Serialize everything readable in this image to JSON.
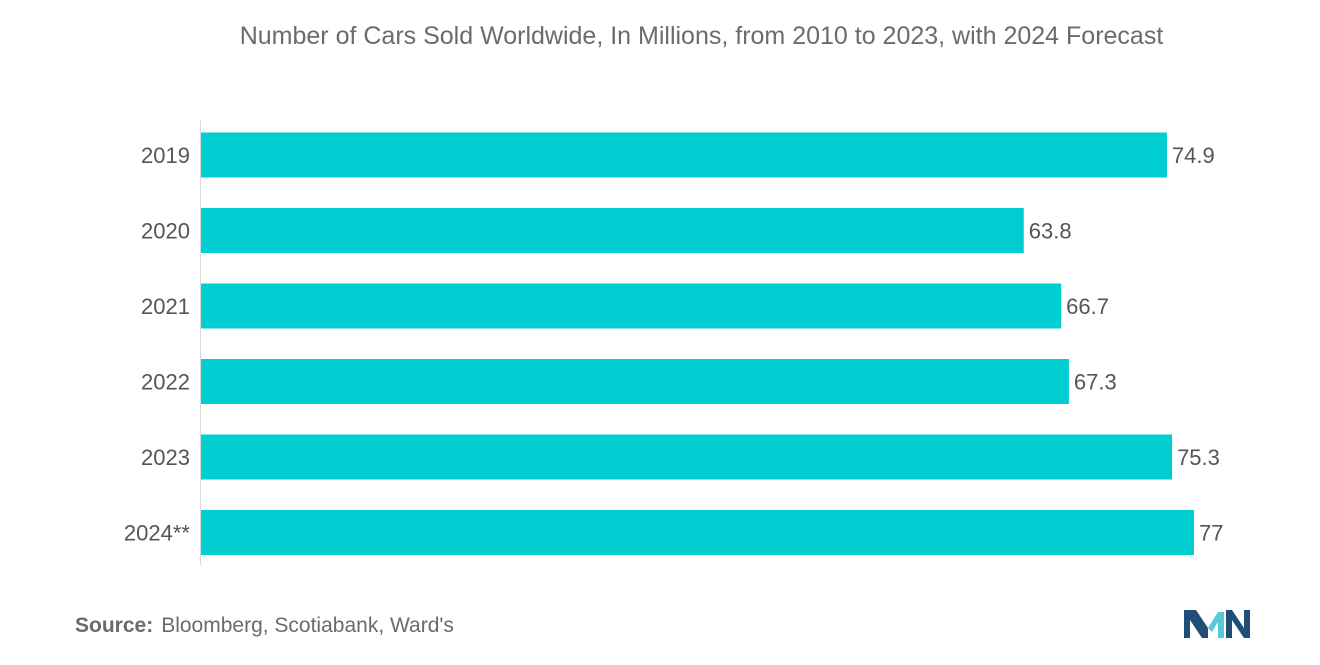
{
  "title": "Number of Cars Sold Worldwide, In Millions, from 2010 to 2023, with 2024 Forecast",
  "source": {
    "label": "Source:",
    "text": "Bloomberg, Scotiabank, Ward's"
  },
  "logo": {
    "icon": "mordor-intelligence-logo-icon",
    "colors": [
      "#1f4e79",
      "#5ac8d8"
    ]
  },
  "colors": {
    "bar": "#00ced1",
    "text": "#555555",
    "title": "#6b6b6b"
  },
  "chart_data": {
    "type": "bar",
    "orientation": "horizontal",
    "title": "Number of Cars Sold Worldwide, In Millions, from 2010 to 2023, with 2024 Forecast",
    "xlabel": "",
    "ylabel": "",
    "categories": [
      "2019",
      "2020",
      "2021",
      "2022",
      "2023",
      "2024**"
    ],
    "values": [
      74.9,
      63.8,
      66.7,
      67.3,
      75.3,
      77
    ],
    "value_labels": [
      "74.9",
      "63.8",
      "66.7",
      "67.3",
      "75.3",
      "77"
    ],
    "xlim": [
      0,
      77
    ],
    "grid": false,
    "legend": "none"
  }
}
